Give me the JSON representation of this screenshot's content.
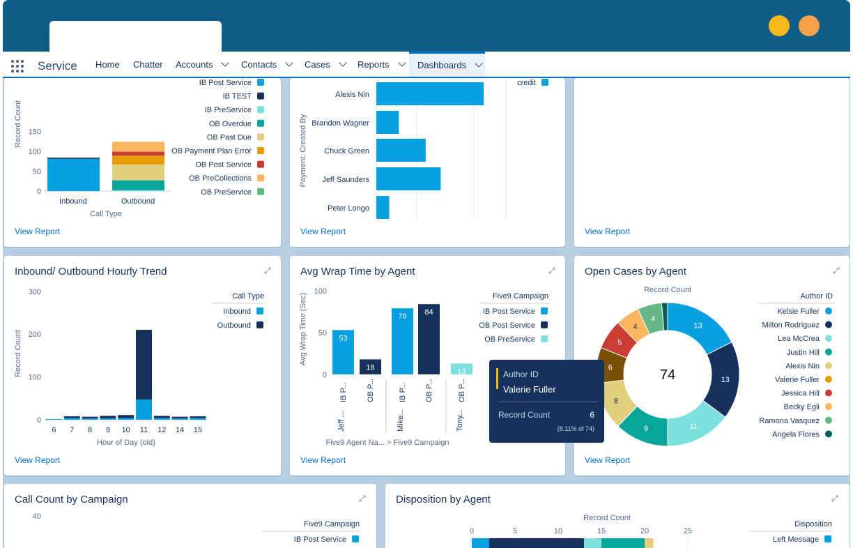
{
  "window": {
    "tab_title": ""
  },
  "nav": {
    "app_name": "Service",
    "items": [
      {
        "label": "Home",
        "has_menu": false
      },
      {
        "label": "Chatter",
        "has_menu": false
      },
      {
        "label": "Accounts",
        "has_menu": true
      },
      {
        "label": "Contacts",
        "has_menu": true
      },
      {
        "label": "Cases",
        "has_menu": true
      },
      {
        "label": "Reports",
        "has_menu": true
      },
      {
        "label": "Dashboards",
        "has_menu": true,
        "active": true
      }
    ]
  },
  "common": {
    "view_report": "View Report",
    "expand_icon": "expand-icon"
  },
  "cards": {
    "c1": {
      "title": "",
      "chart_data": {
        "type": "bar",
        "stacked": true,
        "ylabel": "Record Count",
        "xlabel": "Call Type",
        "yticks": [
          "0",
          "50",
          "100",
          "150"
        ],
        "ylim": [
          0,
          190
        ],
        "categories": [
          "Inbound",
          "Outbound"
        ],
        "series": [
          {
            "name": "IB Post Service",
            "color": "#069fe1",
            "values": [
              81,
              0
            ]
          },
          {
            "name": "IB TEST",
            "color": "#16325c",
            "values": [
              3,
              0
            ]
          },
          {
            "name": "IB PreService",
            "color": "#7ee0dd",
            "values": [
              0,
              2
            ]
          },
          {
            "name": "OB Overdue",
            "color": "#07a59b",
            "values": [
              0,
              25
            ]
          },
          {
            "name": "OB Past Due",
            "color": "#e2cf7e",
            "values": [
              0,
              40
            ]
          },
          {
            "name": "OB Payment Plan Error",
            "color": "#e89b06",
            "values": [
              0,
              22
            ]
          },
          {
            "name": "OB Post Service",
            "color": "#cb3c35",
            "values": [
              0,
              10
            ]
          },
          {
            "name": "OB PreCollections",
            "color": "#f9b560",
            "values": [
              0,
              25
            ]
          },
          {
            "name": "OB PreService",
            "color": "#65b883",
            "values": [
              0,
              0
            ]
          }
        ]
      }
    },
    "c2": {
      "title": "",
      "chart_data": {
        "type": "bar",
        "orientation": "horizontal",
        "ylabel": "Payment: Created By",
        "categories": [
          "Alexis Nin",
          "Brandon Wagner",
          "Chuck Green",
          "Jeff Saunders",
          "Peter Longo"
        ],
        "series": [
          {
            "name": "credit",
            "color": "#069fe1",
            "values": [
              100,
              21,
              46,
              60,
              12
            ]
          }
        ],
        "xlim": [
          0,
          120
        ]
      }
    },
    "c3": {
      "title": ""
    },
    "c4": {
      "title": "Inbound/ Outbound Hourly Trend",
      "legend_title": "Call Type",
      "chart_data": {
        "type": "bar",
        "stacked": true,
        "xlabel": "Hour of Day (old)",
        "ylabel": "Record Count",
        "yticks": [
          "0",
          "100",
          "200",
          "300"
        ],
        "ylim": [
          0,
          300
        ],
        "categories": [
          "6",
          "7",
          "8",
          "9",
          "10",
          "11",
          "12",
          "14",
          "15"
        ],
        "series": [
          {
            "name": "Inbound",
            "color": "#069fe1",
            "values": [
              1,
              4,
              3,
              3,
              4,
              47,
              4,
              3,
              4
            ]
          },
          {
            "name": "Outbound",
            "color": "#16325c",
            "values": [
              0,
              4,
              4,
              6,
              7,
              163,
              5,
              4,
              4
            ]
          }
        ]
      }
    },
    "c5": {
      "title": "Avg Wrap Time by Agent",
      "legend_title": "Five9 Campaign",
      "chart_data": {
        "type": "bar",
        "ylabel": "Avg Wrap Time (Sec)",
        "xlabel": "Five9 Agent Na... > Five9 Campaign",
        "yticks": [
          "0",
          "50",
          "100"
        ],
        "ylim": [
          0,
          100
        ],
        "groups": [
          {
            "label": "Jeff ...",
            "bars": [
              {
                "label": "IB P...",
                "value": 53,
                "series": "IB Post Service"
              },
              {
                "label": "OB P...",
                "value": 18,
                "series": "OB Post Service"
              }
            ]
          },
          {
            "label": "Mike...",
            "bars": [
              {
                "label": "IB P...",
                "value": 79,
                "series": "IB Post Service"
              },
              {
                "label": "OB P...",
                "value": 84,
                "series": "OB Post Service"
              }
            ]
          },
          {
            "label": "Tony...",
            "bars": [
              {
                "label": "OB P...",
                "value": 13,
                "series": "OB PreService"
              }
            ]
          }
        ],
        "series": [
          {
            "name": "IB Post Service",
            "color": "#069fe1"
          },
          {
            "name": "OB Post Service",
            "color": "#16325c"
          },
          {
            "name": "OB PreService",
            "color": "#7ee0dd"
          }
        ]
      }
    },
    "c6": {
      "title": "Open Cases by Agent",
      "legend_title": "Author ID",
      "chart_data": {
        "type": "pie",
        "donut": true,
        "subtitle": "Record Count",
        "total": "74",
        "slices": [
          {
            "name": "Kelsie Fuller",
            "value": 13,
            "color": "#069fe1"
          },
          {
            "name": "Milton Rodriguez",
            "value": 13,
            "color": "#16325c"
          },
          {
            "name": "Lea McCrea",
            "value": 11,
            "color": "#7ee0dd"
          },
          {
            "name": "Justin Hill",
            "value": 9,
            "color": "#07a59b"
          },
          {
            "name": "Alexis Nin",
            "value": 8,
            "color": "#e2cf7e"
          },
          {
            "name": "Valerie Fuller",
            "value": 6,
            "color": "#7a5104"
          },
          {
            "name": "Jessica Hill",
            "value": 5,
            "color": "#cb3c35"
          },
          {
            "name": "Becky Egli",
            "value": 4,
            "color": "#f9b560"
          },
          {
            "name": "Ramona Vasquez",
            "value": 4,
            "color": "#65b883"
          },
          {
            "name": "Angela Flores",
            "value": 1,
            "color": "#04625e"
          }
        ],
        "legend_colors": [
          "#069fe1",
          "#16325c",
          "#7ee0dd",
          "#07a59b",
          "#e2cf7e",
          "#e89b06",
          "#cb3c35",
          "#f9b560",
          "#65b883",
          "#04625e"
        ]
      }
    },
    "c7": {
      "title": "Call Count by Campaign",
      "legend_title": "Five9 Campaign",
      "chart_data": {
        "type": "bar",
        "ytick_top": "40",
        "series": [
          {
            "name": "IB Post Service",
            "color": "#069fe1"
          }
        ]
      }
    },
    "c8": {
      "title": "Disposition by Agent",
      "legend_title": "Disposition",
      "chart_data": {
        "type": "bar",
        "orientation": "horizontal",
        "stacked": true,
        "xlabel": "Record Count",
        "xticks": [
          "0",
          "5",
          "10",
          "15",
          "20",
          "25"
        ],
        "xlim": [
          0,
          25
        ],
        "rows": [
          {
            "label": "",
            "segments": [
              {
                "value": 2,
                "color": "#069fe1"
              },
              {
                "value": 11,
                "color": "#16325c"
              },
              {
                "value": 2,
                "color": "#7ee0dd"
              },
              {
                "value": 5,
                "color": "#07a59b"
              },
              {
                "value": 1,
                "color": "#e2cf7e"
              }
            ]
          }
        ],
        "series": [
          {
            "name": "Left Message",
            "color": "#069fe1"
          }
        ]
      }
    }
  },
  "tooltip": {
    "key_label": "Author ID",
    "key_value": "Valerie Fuller",
    "metric_label": "Record Count",
    "metric_value": "6",
    "percent": "(8.11% of 74)"
  }
}
